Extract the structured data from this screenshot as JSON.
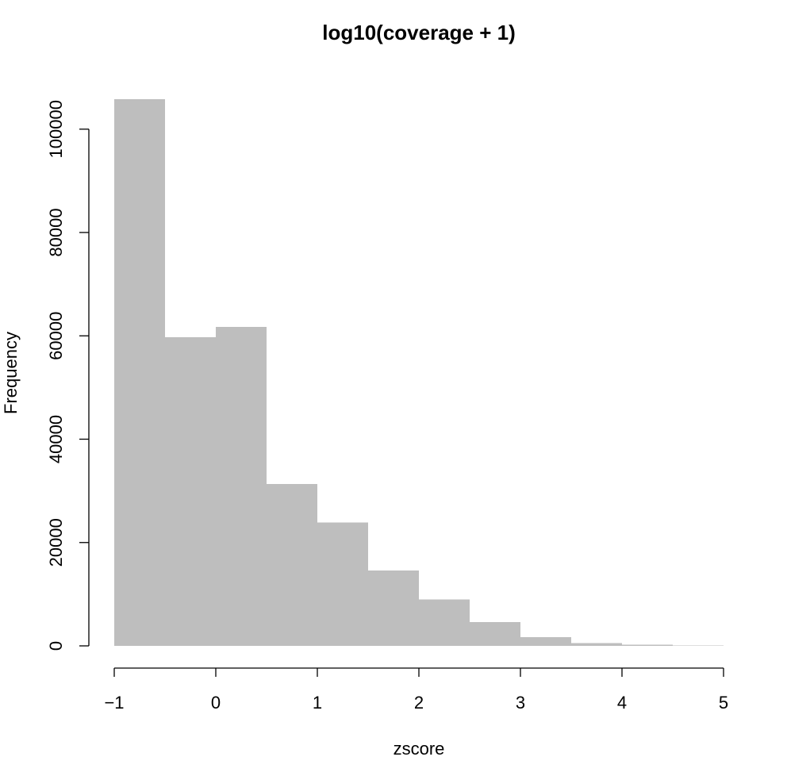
{
  "chart_data": {
    "type": "bar",
    "title": "log10(coverage + 1)",
    "xlabel": "zscore",
    "ylabel": "Frequency",
    "bin_edges": [
      -1,
      -0.5,
      0,
      0.5,
      1,
      1.5,
      2,
      2.5,
      3,
      3.5,
      4,
      4.5,
      5
    ],
    "values": [
      105800,
      59700,
      61700,
      31300,
      23900,
      14600,
      9000,
      4600,
      1700,
      500,
      200,
      100
    ],
    "xlim": [
      -1,
      5
    ],
    "ylim": [
      0,
      105800
    ],
    "x_ticks": [
      -1,
      0,
      1,
      2,
      3,
      4,
      5
    ],
    "x_tick_labels": [
      "−1",
      "0",
      "1",
      "2",
      "3",
      "4",
      "5"
    ],
    "y_ticks": [
      0,
      20000,
      40000,
      60000,
      80000,
      100000
    ],
    "y_tick_labels": [
      "0",
      "20000",
      "40000",
      "60000",
      "80000",
      "100000"
    ],
    "bar_color": "#bebebe",
    "grid": false,
    "legend": "none"
  }
}
